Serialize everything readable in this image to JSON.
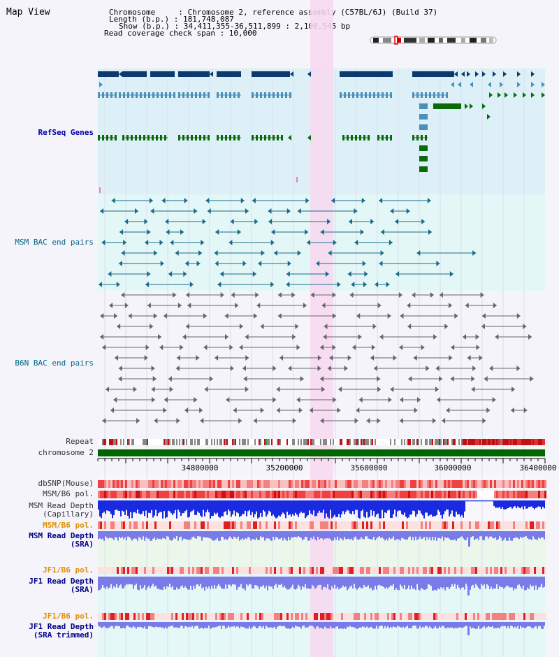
{
  "title": "Map View",
  "header": {
    "chromosome": "Chromosome     : Chromosome 2, reference assembly (C57BL/6J) (Build 37)",
    "length": "Length (b.p.) : 181,748,087",
    "show": "Show (b.p.) : 34,411,355-36,511,899 : 2,100,545 bp",
    "span": "Read coverage check span : 10,000"
  },
  "tracks": {
    "refseq": "RefSeq Genes",
    "msm_bac": "MSM BAC end pairs",
    "b6n_bac": "B6N BAC end pairs",
    "repeat": "Repeat",
    "chromosome": "chromosome 2",
    "dbsnp": "dbSNP(Mouse)",
    "msm_pol1": "MSM/B6 pol.",
    "msm_depth_cap_1": "MSM Read Depth",
    "msm_depth_cap_2": "(Capillary)",
    "msm_pol2": "MSM/B6 pol.",
    "msm_depth_sra_1": "MSM Read Depth",
    "msm_depth_sra_2": "(SRA)",
    "jf1_pol1": "JF1/B6 pol.",
    "jf1_depth_1": "JF1 Read Depth",
    "jf1_depth_2": "(SRA)",
    "jf1_pol2": "JF1/B6 pol.",
    "jf1_trim_1": "JF1 Read Depth",
    "jf1_trim_2": "(SRA trimmed)"
  },
  "axis": {
    "ticks": [
      "34800000",
      "35200000",
      "35600000",
      "36000000",
      "36400000"
    ]
  },
  "colors": {
    "refseq_bg": "#ddf0f8",
    "msm_bg": "#e4f7f7",
    "b6n_bg": "#f4f4fa",
    "highlight": "#f8d8f0",
    "gene_navy": "#0d3a6e",
    "gene_mid": "#4a90b8",
    "gene_green": "#0a6a0a",
    "chrom_green": "#006600",
    "depth_blue": "#1a2ae0",
    "depth_light": "#7a7ae8"
  }
}
